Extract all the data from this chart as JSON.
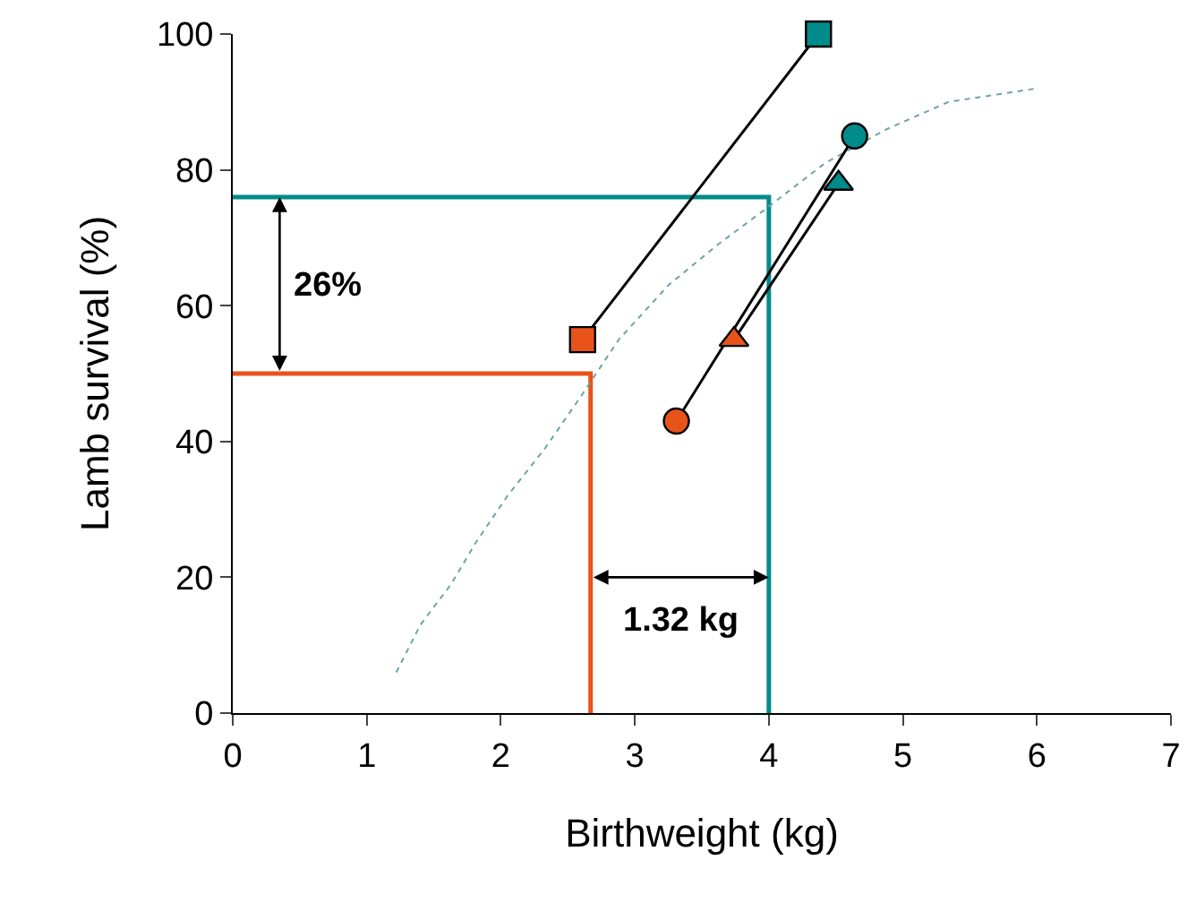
{
  "chart_data": {
    "type": "line",
    "xlabel": "Birthweight (kg)",
    "ylabel": "Lamb survival (%)",
    "xlim": [
      0,
      7
    ],
    "xticks": [
      0,
      1,
      2,
      3,
      4,
      5,
      6,
      7
    ],
    "ylim": [
      0,
      100
    ],
    "yticks": [
      0,
      20,
      40,
      60,
      80,
      100
    ],
    "series": [
      {
        "color": "#e8531a",
        "x": [
          0,
          2.67,
          2.67
        ],
        "values": [
          50,
          50,
          0
        ],
        "marker": "none",
        "line_style": "solid"
      },
      {
        "color": "#008b8b",
        "x": [
          0,
          4.0,
          4.0
        ],
        "values": [
          76,
          76,
          0
        ],
        "marker": "none",
        "line_style": "solid"
      },
      {
        "color": "#6fa3a3",
        "x": [
          1.22,
          1.4,
          1.63,
          1.81,
          2.05,
          2.33,
          2.61,
          2.88,
          3.25,
          3.62,
          3.96,
          4.42,
          4.88,
          5.34,
          6.0
        ],
        "values": [
          6,
          13,
          19,
          25,
          32,
          39,
          47,
          55,
          63,
          69,
          74,
          81,
          86,
          90,
          92
        ],
        "marker": "none",
        "line_style": "dotted"
      },
      {
        "color": "#000000",
        "colors": [
          "#e8531a",
          "#008b8b"
        ],
        "x": [
          2.61,
          4.37
        ],
        "values": [
          55,
          100
        ],
        "marker": "square",
        "line_style": "solid"
      },
      {
        "color": "#000000",
        "colors": [
          "#e8531a",
          "#008b8b"
        ],
        "x": [
          3.31,
          4.64
        ],
        "values": [
          43,
          85
        ],
        "marker": "circle",
        "line_style": "solid"
      },
      {
        "color": "#000000",
        "colors": [
          "#e8531a",
          "#008b8b"
        ],
        "x": [
          3.74,
          4.52
        ],
        "values": [
          55,
          78
        ],
        "marker": "triangle",
        "line_style": "solid"
      }
    ],
    "annotations": [
      "26%",
      "1.32 kg"
    ]
  }
}
